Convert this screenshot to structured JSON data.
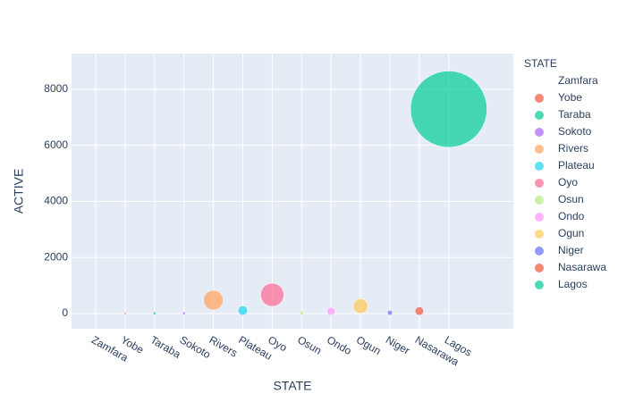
{
  "chart_data": {
    "type": "scatter",
    "x_label": "STATE",
    "y_label": "ACTIVE",
    "legend_title": "STATE",
    "categories": [
      "Zamfara",
      "Yobe",
      "Taraba",
      "Sokoto",
      "Rivers",
      "Plateau",
      "Oyo",
      "Osun",
      "Ondo",
      "Ogun",
      "Niger",
      "Nasarawa",
      "Lagos"
    ],
    "values": [
      0,
      5,
      10,
      10,
      480,
      110,
      670,
      20,
      80,
      270,
      30,
      90,
      7290
    ],
    "colors": [
      "#636efa",
      "#EF553B",
      "#00cc96",
      "#ab63fa",
      "#FFA15A",
      "#19d3f3",
      "#FF6692",
      "#B6E880",
      "#FF97FF",
      "#FECB52",
      "#636efa",
      "#EF553B",
      "#00cc96"
    ],
    "ylim": [
      -540,
      9270
    ],
    "yticks": [
      0,
      2000,
      4000,
      6000,
      8000
    ],
    "grid": true
  }
}
